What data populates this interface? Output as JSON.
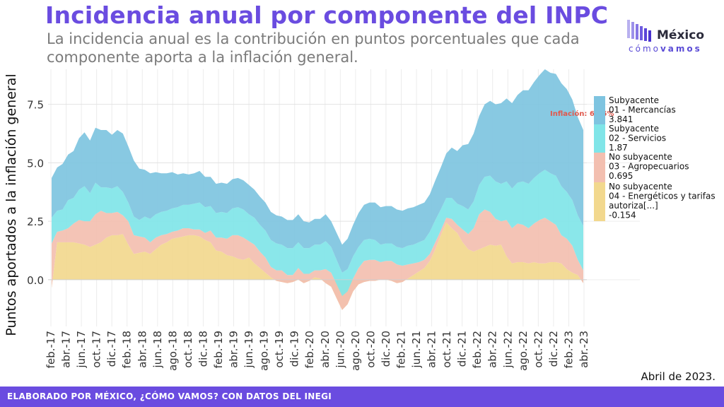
{
  "header": {
    "title": "Incidencia anual por componente del INPC",
    "subtitle": "La incidencia anual es la contribución en puntos porcentuales que cada componente aporta a la inflación general."
  },
  "logo": {
    "word1": "México",
    "word2a": "cómo",
    "word2b": "vamos",
    "color": "#5a4bd6"
  },
  "date_note": "Abril de 2023.",
  "footer": {
    "text": "ELABORADO POR MÉXICO, ¿CÓMO VAMOS? CON DATOS DEL INEGI",
    "color": "#6a4ce0"
  },
  "chart_data": {
    "type": "area",
    "stacked": true,
    "ylabel": "Puntos aportados a la inflación general",
    "ylim": [
      -2.0,
      9.0
    ],
    "yticks": [
      0.0,
      2.5,
      5.0,
      7.5
    ],
    "ytick_labels": [
      "0.0",
      "2.5",
      "5.0",
      "7.5"
    ],
    "x_start": "2017-02",
    "x_end": "2023-04",
    "xtick_labels": [
      "feb.-17",
      "abr.-17",
      "jun.-17",
      "oct.-17",
      "dic.-17",
      "feb.-18",
      "abr.-18",
      "jun.-18",
      "ago.-18",
      "oct.-18",
      "dic.-18",
      "feb.-19",
      "abr.-19",
      "jun.-19",
      "ago.-19",
      "oct.-19",
      "dic.-19",
      "feb.-20",
      "abr.-20",
      "jun.-20",
      "ago.-20",
      "oct.-20",
      "dic.-20",
      "feb.-21",
      "jun.-21",
      "abr.-21",
      "oct.-21",
      "dic.-21",
      "feb.-22",
      "abr.-22",
      "jun.-22",
      "ago.-22",
      "oct.-22",
      "dic.-22",
      "feb.-23",
      "abr.-23"
    ],
    "annotation": "Inflación: 6.25%",
    "grid": true,
    "legend_position": "right",
    "series": [
      {
        "name_lines": [
          "No subyacente",
          "04 - Energéticos y tarifas",
          "autoriza[...]"
        ],
        "last_value": "-0.154",
        "color": "#f2d88e",
        "values": [
          -0.35,
          1.6,
          1.6,
          1.6,
          1.6,
          1.55,
          1.5,
          1.4,
          1.5,
          1.6,
          1.8,
          1.9,
          1.9,
          1.95,
          1.5,
          1.1,
          1.15,
          1.2,
          1.1,
          1.3,
          1.5,
          1.6,
          1.75,
          1.8,
          1.85,
          1.9,
          1.9,
          1.85,
          1.7,
          1.6,
          1.25,
          1.2,
          1.05,
          1.0,
          0.9,
          0.85,
          0.95,
          0.7,
          0.5,
          0.3,
          0.1,
          -0.05,
          -0.1,
          -0.15,
          -0.1,
          0.0,
          -0.15,
          -0.05,
          0.1,
          0.05,
          -0.15,
          -0.3,
          -0.8,
          -1.3,
          -1.05,
          -0.5,
          -0.2,
          -0.1,
          -0.05,
          -0.05,
          0.0,
          0.0,
          -0.05,
          -0.15,
          -0.1,
          0.05,
          0.2,
          0.35,
          0.5,
          0.8,
          1.3,
          1.9,
          2.45,
          2.2,
          2.0,
          1.6,
          1.3,
          1.2,
          1.3,
          1.4,
          1.5,
          1.45,
          1.5,
          1.0,
          0.7,
          0.75,
          0.75,
          0.7,
          0.75,
          0.7,
          0.7,
          0.75,
          0.75,
          0.7,
          0.45,
          0.3,
          0.2,
          -0.15
        ]
      },
      {
        "name_lines": [
          "No subyacente",
          "03 - Agropecuarios"
        ],
        "last_value": "0.695",
        "color": "#f3bfb0",
        "values": [
          1.9,
          0.45,
          0.5,
          0.6,
          0.8,
          1.0,
          1.0,
          1.1,
          1.3,
          1.35,
          1.05,
          0.95,
          1.0,
          0.8,
          1.0,
          0.8,
          0.7,
          0.6,
          0.5,
          0.5,
          0.4,
          0.35,
          0.3,
          0.3,
          0.35,
          0.3,
          0.25,
          0.3,
          0.3,
          0.5,
          0.55,
          0.6,
          0.7,
          0.9,
          1.0,
          0.95,
          0.7,
          0.8,
          0.7,
          0.65,
          0.45,
          0.45,
          0.5,
          0.35,
          0.3,
          0.5,
          0.4,
          0.3,
          0.3,
          0.35,
          0.6,
          0.6,
          0.6,
          0.6,
          0.55,
          0.55,
          0.7,
          0.9,
          0.9,
          0.9,
          0.75,
          0.8,
          0.85,
          0.8,
          0.7,
          0.6,
          0.5,
          0.4,
          0.35,
          0.3,
          0.3,
          0.2,
          0.2,
          0.4,
          0.35,
          0.55,
          0.65,
          1.0,
          1.5,
          1.6,
          1.4,
          1.15,
          1.0,
          1.55,
          1.5,
          1.65,
          1.6,
          1.5,
          1.65,
          1.85,
          1.95,
          1.75,
          1.6,
          1.2,
          1.3,
          1.15,
          0.65,
          0.55,
          0.7
        ]
      },
      {
        "name_lines": [
          "Subyacente",
          "02 - Servicios"
        ],
        "last_value": "1.87",
        "color": "#80e5e8",
        "values": [
          1.1,
          0.9,
          0.9,
          1.2,
          1.1,
          1.3,
          1.5,
          1.2,
          1.35,
          1.0,
          1.1,
          1.05,
          1.1,
          1.0,
          0.8,
          0.8,
          0.7,
          0.9,
          1.0,
          1.0,
          1.0,
          1.0,
          1.0,
          1.0,
          1.0,
          1.0,
          1.1,
          1.15,
          1.1,
          1.05,
          1.05,
          1.1,
          1.1,
          1.15,
          1.2,
          1.2,
          1.15,
          1.15,
          1.15,
          1.15,
          1.15,
          1.15,
          1.1,
          1.15,
          1.15,
          1.1,
          1.1,
          1.1,
          1.1,
          1.1,
          1.2,
          1.1,
          1.05,
          1.0,
          0.95,
          0.95,
          0.9,
          0.9,
          0.9,
          0.85,
          0.75,
          0.75,
          0.75,
          0.75,
          0.75,
          0.8,
          0.8,
          0.85,
          0.85,
          0.95,
          0.95,
          0.9,
          0.85,
          0.9,
          0.9,
          1.0,
          1.05,
          1.15,
          1.25,
          1.4,
          1.55,
          1.6,
          1.6,
          1.65,
          1.7,
          1.75,
          1.85,
          1.9,
          1.95,
          2.0,
          2.05,
          2.05,
          2.1,
          2.1,
          2.0,
          1.95,
          1.9,
          1.9,
          1.87
        ]
      },
      {
        "name_lines": [
          "Subyacente",
          "01 - Mercancías"
        ],
        "last_value": "3.841",
        "color": "#7ec4e0",
        "values": [
          1.7,
          1.85,
          1.95,
          1.95,
          2.0,
          2.2,
          2.3,
          2.25,
          2.35,
          2.45,
          2.45,
          2.3,
          2.4,
          2.5,
          2.4,
          2.4,
          2.2,
          2.0,
          1.95,
          1.8,
          1.65,
          1.6,
          1.55,
          1.4,
          1.35,
          1.3,
          1.3,
          1.35,
          1.3,
          1.25,
          1.25,
          1.25,
          1.25,
          1.25,
          1.25,
          1.25,
          1.25,
          1.2,
          1.2,
          1.2,
          1.2,
          1.2,
          1.2,
          1.2,
          1.2,
          1.2,
          1.15,
          1.1,
          1.1,
          1.1,
          1.15,
          1.1,
          1.15,
          1.2,
          1.3,
          1.35,
          1.45,
          1.5,
          1.55,
          1.6,
          1.6,
          1.6,
          1.6,
          1.6,
          1.6,
          1.6,
          1.6,
          1.6,
          1.6,
          1.6,
          1.7,
          1.8,
          1.9,
          2.15,
          2.25,
          2.6,
          2.8,
          2.9,
          2.95,
          3.1,
          3.2,
          3.3,
          3.45,
          3.55,
          3.65,
          3.75,
          3.9,
          4.0,
          4.1,
          4.2,
          4.3,
          4.3,
          4.35,
          4.4,
          4.4,
          4.3,
          4.2,
          4.1,
          3.841
        ]
      }
    ]
  }
}
